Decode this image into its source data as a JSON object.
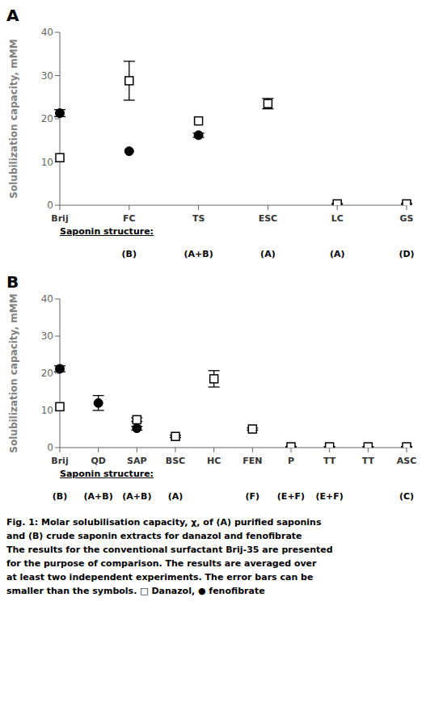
{
  "chart_data": [
    {
      "type": "scatter",
      "panel_label": "A",
      "categories": [
        "Brij",
        "FC",
        "TS",
        "ESC",
        "LC",
        "GS"
      ],
      "series": [
        {
          "marker": "square",
          "color": "black",
          "values": [
            11.0,
            28.8,
            19.5,
            23.5,
            0.3,
            0.3
          ],
          "errors": [
            0.0,
            4.5,
            0.0,
            1.2,
            0.1,
            0.1
          ]
        },
        {
          "marker": "circle",
          "color": "black",
          "values": [
            21.3,
            12.5,
            16.2,
            null,
            null,
            null
          ],
          "errors": [
            0.8,
            0.0,
            0.5,
            null,
            null,
            null
          ]
        }
      ],
      "structure_title": "Saponin structure:",
      "structure_labels": [
        null,
        "(B)",
        "(A+B)",
        "(A)",
        "(A)",
        "(D)"
      ],
      "ylabel": "Solubilization capacity, mMM",
      "ylim": [
        0,
        40
      ],
      "yticks": [
        0,
        10,
        20,
        30,
        40
      ]
    },
    {
      "type": "scatter",
      "panel_label": "B",
      "categories": [
        "Brij",
        "QD",
        "SAP",
        "BSC",
        "HC",
        "FEN",
        "P",
        "TT",
        "TT",
        "ASC"
      ],
      "series": [
        {
          "marker": "square",
          "color": "black",
          "values": [
            11.0,
            null,
            7.5,
            3.0,
            18.5,
            5.0,
            0.2,
            0.2,
            0.2,
            0.2
          ],
          "errors": [
            0.0,
            null,
            0.5,
            0.3,
            2.2,
            0.3,
            0.1,
            0.1,
            0.1,
            0.1
          ]
        },
        {
          "marker": "circle",
          "color": "black",
          "values": [
            21.2,
            12.0,
            5.2,
            null,
            null,
            null,
            null,
            null,
            null,
            null
          ],
          "errors": [
            0.8,
            2.0,
            0.5,
            null,
            null,
            null,
            null,
            null,
            null,
            null
          ]
        }
      ],
      "structure_title": "Saponin structure:",
      "structure_labels": [
        "(B)",
        "(A+B)",
        "(A+B)",
        "(A)",
        null,
        "(F)",
        "(E+F)",
        "(E+F)",
        null,
        "(C)"
      ],
      "ylabel": "Solubilization capacity, mMM",
      "ylim": [
        0,
        40
      ],
      "yticks": [
        0,
        10,
        20,
        30,
        40
      ]
    }
  ],
  "caption": [
    "Fig. 1: Molar solubilisation capacity, χ, of (A) purified saponins",
    "and (B) crude saponin extracts for danazol and fenofibrate",
    "The results for the conventional surfactant Brij-35 are presented",
    "for the purpose of comparison. The results are averaged over",
    "at least two independent experiments. The error bars can be",
    "smaller than the symbols. □ Danazol, ● fenofibrate"
  ]
}
